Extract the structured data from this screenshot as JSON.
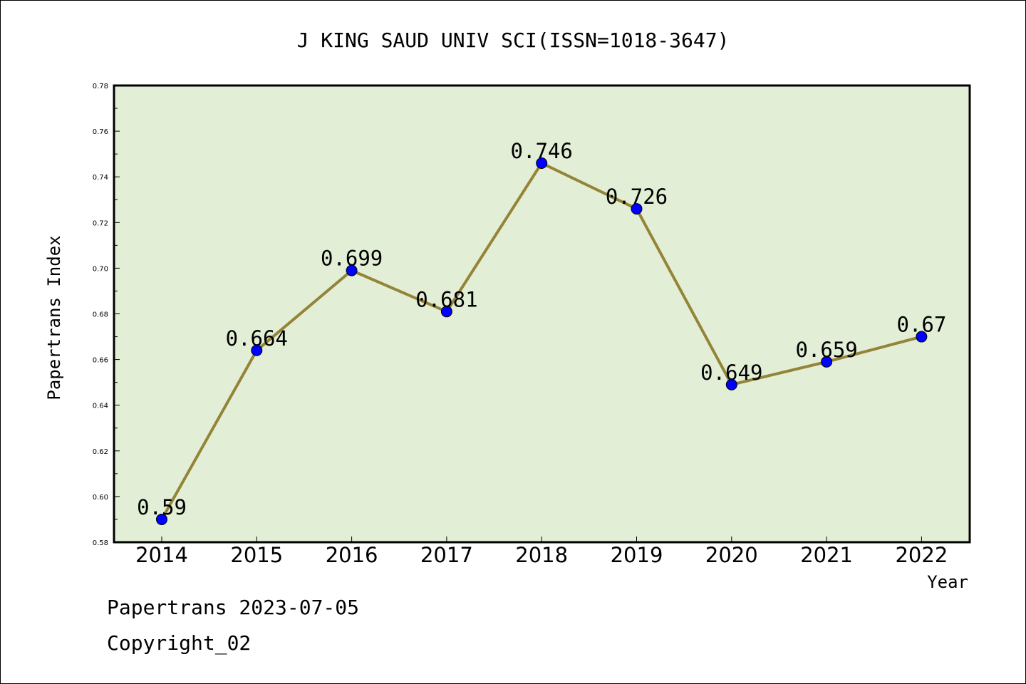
{
  "chart_data": {
    "type": "line",
    "title": "J KING SAUD UNIV SCI(ISSN=1018-3647)",
    "xlabel": "Year",
    "ylabel": "Papertrans Index",
    "categories": [
      "2014",
      "2015",
      "2016",
      "2017",
      "2018",
      "2019",
      "2020",
      "2021",
      "2022"
    ],
    "series": [
      {
        "values": [
          0.59,
          0.664,
          0.699,
          0.681,
          0.746,
          0.726,
          0.649,
          0.659,
          0.67
        ],
        "labels": [
          "0.59",
          "0.664",
          "0.699",
          "0.681",
          "0.746",
          "0.726",
          "0.649",
          "0.659",
          "0.67"
        ]
      }
    ],
    "ylim": [
      0.58,
      0.78
    ],
    "yticks": [
      "0.58",
      "0.60",
      "0.62",
      "0.64",
      "0.66",
      "0.68",
      "0.70",
      "0.72",
      "0.74",
      "0.76",
      "0.78"
    ],
    "grid": false,
    "colors": {
      "plot_background": "#e2efd6",
      "line": "#948438",
      "marker": "#0000ff"
    }
  },
  "footer": {
    "source": "Papertrans 2023-07-05",
    "copyright": "Copyright_02"
  }
}
